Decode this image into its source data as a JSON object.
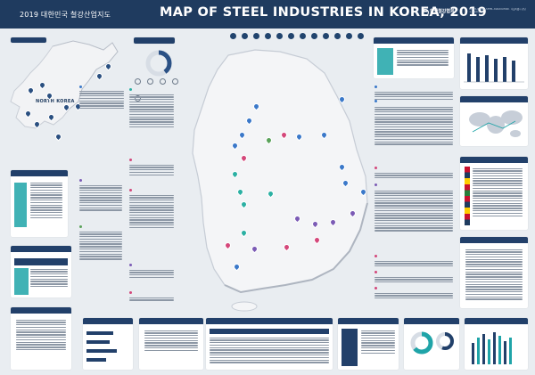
{
  "header": {
    "subtitle": "2019 대한민국 철강산업지도",
    "title": "MAP OF STEEL INDUSTRIES IN KOREA, 2019",
    "org_name": "한국철강협회",
    "org_note": "KOREA IRON & STEEL ASSOCIATION · 서울특별시 강남구 테헤란로"
  },
  "map": {
    "north_korea_label": "NORTH KOREA"
  },
  "colors": {
    "header_bg": "#1f3b5f",
    "panel_head": "#22406a",
    "accent_teal": "#1fa4a8",
    "pin_purple": "#7b5bb5",
    "pin_teal": "#2bb0a3",
    "pin_blue": "#3a78c9",
    "pin_pink": "#d4477a",
    "pin_green": "#5aa25a"
  }
}
